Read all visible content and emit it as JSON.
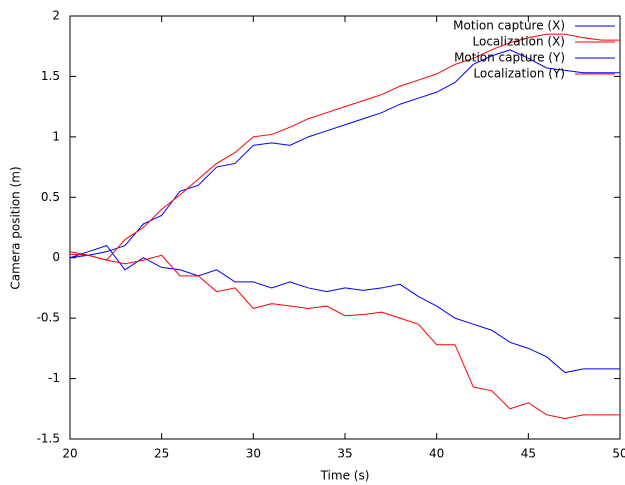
{
  "chart_data": {
    "type": "line",
    "xlabel": "Time (s)",
    "ylabel": "Camera position (m)",
    "x": [
      20,
      21,
      22,
      23,
      24,
      25,
      26,
      27,
      28,
      29,
      30,
      31,
      32,
      33,
      34,
      35,
      36,
      37,
      38,
      39,
      40,
      41,
      42,
      43,
      44,
      45,
      46,
      47,
      48,
      49,
      50
    ],
    "series": [
      {
        "name": "Motion capture (X)",
        "color": "#0000ff",
        "values": [
          0,
          0.02,
          0.05,
          0.1,
          0.28,
          0.35,
          0.55,
          0.6,
          0.75,
          0.78,
          0.93,
          0.95,
          0.93,
          1.0,
          1.05,
          1.1,
          1.15,
          1.2,
          1.27,
          1.32,
          1.37,
          1.45,
          1.6,
          1.67,
          1.72,
          1.65,
          1.57,
          1.55,
          1.53,
          1.53,
          1.53
        ]
      },
      {
        "name": "Localization (X)",
        "color": "#ff0000",
        "values": [
          0.05,
          0.02,
          -0.02,
          0.15,
          0.25,
          0.4,
          0.52,
          0.65,
          0.78,
          0.87,
          1.0,
          1.02,
          1.08,
          1.15,
          1.2,
          1.25,
          1.3,
          1.35,
          1.42,
          1.47,
          1.52,
          1.6,
          1.65,
          1.72,
          1.78,
          1.82,
          1.85,
          1.85,
          1.82,
          1.8,
          1.8
        ]
      },
      {
        "name": "Motion capture (Y)",
        "color": "#0000ff",
        "values": [
          0,
          0.05,
          0.1,
          -0.1,
          0.0,
          -0.08,
          -0.1,
          -0.15,
          -0.1,
          -0.2,
          -0.2,
          -0.25,
          -0.2,
          -0.25,
          -0.28,
          -0.25,
          -0.27,
          -0.25,
          -0.22,
          -0.32,
          -0.4,
          -0.5,
          -0.55,
          -0.6,
          -0.7,
          -0.75,
          -0.82,
          -0.95,
          -0.92,
          -0.92,
          -0.92
        ]
      },
      {
        "name": "Localization (Y)",
        "color": "#ff0000",
        "values": [
          0.03,
          0.02,
          -0.02,
          -0.05,
          -0.02,
          0.02,
          -0.15,
          -0.15,
          -0.28,
          -0.25,
          -0.42,
          -0.38,
          -0.4,
          -0.42,
          -0.4,
          -0.48,
          -0.47,
          -0.45,
          -0.5,
          -0.55,
          -0.72,
          -0.72,
          -1.07,
          -1.1,
          -1.25,
          -1.2,
          -1.3,
          -1.33,
          -1.3,
          -1.3,
          -1.3
        ]
      }
    ],
    "xlim": [
      20,
      50
    ],
    "xticks": [
      20,
      25,
      30,
      35,
      40,
      45,
      50
    ],
    "ylim": [
      -1.5,
      2
    ],
    "yticks": [
      -1.5,
      -1,
      -0.5,
      0,
      0.5,
      1,
      1.5,
      2
    ],
    "legend": "top-right"
  }
}
